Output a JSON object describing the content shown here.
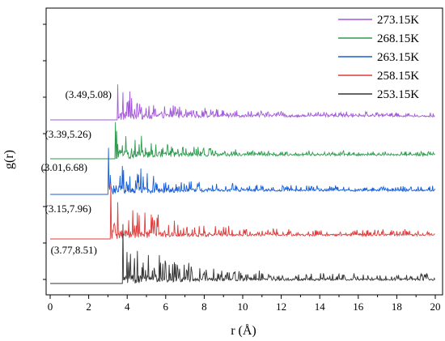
{
  "chart_data": {
    "type": "line",
    "xlabel": "r (Å)",
    "ylabel": "g(r)",
    "xlim": [
      0,
      20
    ],
    "x_ticks": [
      0,
      2,
      4,
      6,
      8,
      10,
      12,
      14,
      16,
      18,
      20
    ],
    "y_ticks_labeled": false,
    "grid": false,
    "legend_position": "top-right",
    "stacked_offsets": true,
    "series": [
      {
        "name": "273.15K",
        "color": "#a259d9",
        "first_peak": [
          3.49,
          5.08
        ],
        "peak_label": "(3.49,5.08)"
      },
      {
        "name": "268.15K",
        "color": "#2e9b4f",
        "first_peak": [
          3.39,
          5.26
        ],
        "peak_label": "(3.39,5.26)"
      },
      {
        "name": "263.15K",
        "color": "#1a5fd6",
        "first_peak": [
          3.01,
          6.68
        ],
        "peak_label": "(3.01,6.68)"
      },
      {
        "name": "258.15K",
        "color": "#e03a3a",
        "first_peak": [
          3.15,
          7.96
        ],
        "peak_label": "(3.15,7.96)"
      },
      {
        "name": "253.15K",
        "color": "#333333",
        "first_peak": [
          3.77,
          8.51
        ],
        "peak_label": "(3.77,8.51)"
      }
    ]
  }
}
